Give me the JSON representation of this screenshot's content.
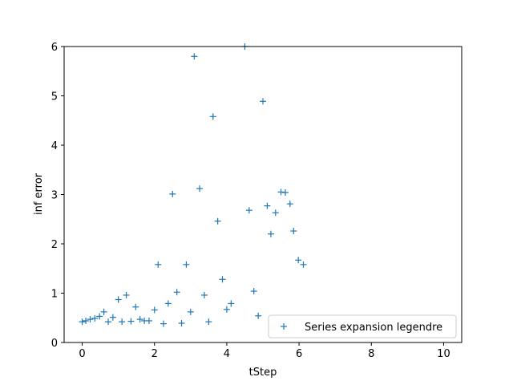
{
  "chart_data": {
    "type": "scatter",
    "title": "",
    "xlabel": "tStep",
    "ylabel": "inf error",
    "xlim": [
      -0.5,
      10.5
    ],
    "ylim": [
      0,
      6
    ],
    "xticks": [
      0,
      2,
      4,
      6,
      8,
      10
    ],
    "yticks": [
      0,
      1,
      2,
      3,
      4,
      5,
      6
    ],
    "grid": false,
    "legend_placement": "lower-right",
    "marker": "+",
    "color": "#1f77b4",
    "series": [
      {
        "name": "Series expansion legendre",
        "points": [
          [
            0.0,
            0.42
          ],
          [
            0.1,
            0.44
          ],
          [
            0.22,
            0.47
          ],
          [
            0.35,
            0.49
          ],
          [
            0.48,
            0.53
          ],
          [
            0.6,
            0.62
          ],
          [
            0.72,
            0.42
          ],
          [
            0.85,
            0.51
          ],
          [
            1.0,
            0.87
          ],
          [
            1.1,
            0.42
          ],
          [
            1.22,
            0.96
          ],
          [
            1.35,
            0.43
          ],
          [
            1.48,
            0.72
          ],
          [
            1.6,
            0.47
          ],
          [
            1.72,
            0.44
          ],
          [
            1.85,
            0.44
          ],
          [
            2.0,
            0.66
          ],
          [
            2.1,
            1.58
          ],
          [
            2.25,
            0.38
          ],
          [
            2.38,
            0.79
          ],
          [
            2.5,
            3.01
          ],
          [
            2.62,
            1.02
          ],
          [
            2.75,
            0.39
          ],
          [
            2.88,
            1.58
          ],
          [
            3.0,
            0.62
          ],
          [
            3.1,
            5.8
          ],
          [
            3.25,
            3.12
          ],
          [
            3.38,
            0.96
          ],
          [
            3.5,
            0.42
          ],
          [
            3.62,
            4.58
          ],
          [
            3.75,
            2.46
          ],
          [
            3.88,
            1.28
          ],
          [
            4.0,
            0.67
          ],
          [
            4.12,
            0.79
          ],
          [
            4.5,
            6.0
          ],
          [
            4.62,
            2.68
          ],
          [
            4.75,
            1.04
          ],
          [
            4.87,
            0.54
          ],
          [
            5.0,
            4.89
          ],
          [
            5.12,
            2.77
          ],
          [
            5.22,
            2.2
          ],
          [
            5.35,
            2.63
          ],
          [
            5.5,
            3.05
          ],
          [
            5.62,
            3.04
          ],
          [
            5.75,
            2.81
          ],
          [
            5.85,
            2.26
          ],
          [
            5.98,
            1.67
          ],
          [
            6.12,
            1.58
          ]
        ]
      }
    ]
  }
}
